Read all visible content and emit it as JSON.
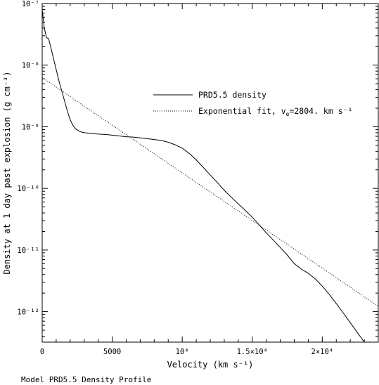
{
  "chart_data": {
    "type": "line",
    "xscale": "linear",
    "yscale": "log",
    "xlim": [
      0,
      24000
    ],
    "ylim": [
      3.2e-13,
      1e-07
    ],
    "xlabel": "Velocity (km s⁻¹)",
    "ylabel": "Density at 1 day past explosion (g cm⁻³)",
    "caption": "Model PRD5.5 Density Profile",
    "grid": false,
    "legend_position": "upper-right",
    "xticks": [
      {
        "value": 0,
        "label": "0"
      },
      {
        "value": 5000,
        "label": "5000"
      },
      {
        "value": 10000,
        "label": "10⁴"
      },
      {
        "value": 15000,
        "label": "1.5×10⁴"
      },
      {
        "value": 20000,
        "label": "2×10⁴"
      }
    ],
    "yticks": [
      {
        "value": 1e-07,
        "label": "10⁻⁷"
      },
      {
        "value": 1e-08,
        "label": "10⁻⁸"
      },
      {
        "value": 1e-09,
        "label": "10⁻⁹"
      },
      {
        "value": 1e-10,
        "label": "10⁻¹⁰"
      },
      {
        "value": 1e-11,
        "label": "10⁻¹¹"
      },
      {
        "value": 1e-12,
        "label": "10⁻¹²"
      }
    ],
    "series": [
      {
        "name": "PRD5.5 density",
        "style": "solid",
        "x": [
          0,
          150,
          300,
          450,
          600,
          800,
          1000,
          1200,
          1400,
          1600,
          1800,
          2000,
          2200,
          2400,
          2600,
          2800,
          3000,
          3500,
          4000,
          4500,
          5000,
          5500,
          6000,
          6500,
          7000,
          7500,
          8000,
          8500,
          9000,
          9500,
          10000,
          10500,
          11000,
          11500,
          12000,
          12500,
          13000,
          13500,
          14000,
          14500,
          15000,
          15500,
          16000,
          16500,
          17000,
          17500,
          18000,
          18500,
          19000,
          19500,
          20000,
          20500,
          21000,
          21500,
          22000,
          22500,
          23000
        ],
        "y": [
          8e-08,
          4e-08,
          2.8e-08,
          2.7e-08,
          2e-08,
          1.3e-08,
          8.5e-09,
          5.5e-09,
          3.8e-09,
          2.6e-09,
          1.8e-09,
          1.3e-09,
          1.05e-09,
          9.2e-10,
          8.6e-10,
          8.2e-10,
          8e-10,
          7.8e-10,
          7.6e-10,
          7.5e-10,
          7.3e-10,
          7.1e-10,
          6.9e-10,
          6.8e-10,
          6.6e-10,
          6.4e-10,
          6.2e-10,
          6e-10,
          5.6e-10,
          5.1e-10,
          4.5e-10,
          3.7e-10,
          2.9e-10,
          2.2e-10,
          1.65e-10,
          1.25e-10,
          9.3e-11,
          7.2e-11,
          5.6e-11,
          4.4e-11,
          3.4e-11,
          2.55e-11,
          1.9e-11,
          1.45e-11,
          1.1e-11,
          8.3e-12,
          6e-12,
          4.9e-12,
          4.2e-12,
          3.4e-12,
          2.6e-12,
          1.9e-12,
          1.35e-12,
          9.5e-13,
          6.6e-13,
          4.6e-13,
          3.2e-13
        ]
      },
      {
        "name": "Exponential fit, v_e=2804. km s⁻¹",
        "legend_main": "Exponential fit, v",
        "legend_sub": "e",
        "legend_rest": "=2804. km s⁻¹",
        "style": "dotted",
        "x": [
          0,
          24000
        ],
        "y": [
          6.3e-09,
          1.22e-12
        ]
      }
    ]
  }
}
